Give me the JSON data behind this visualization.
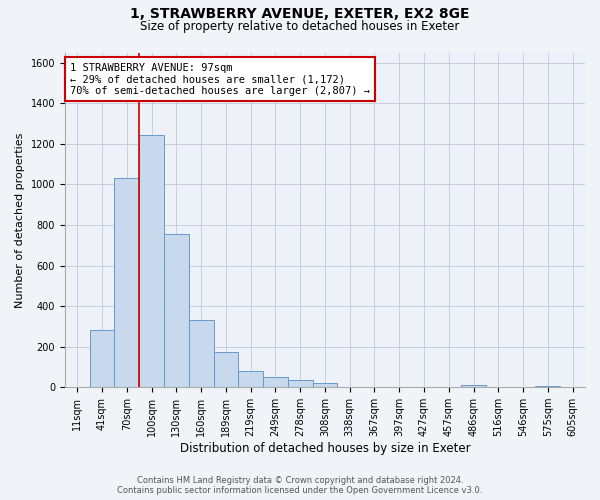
{
  "title_line1": "1, STRAWBERRY AVENUE, EXETER, EX2 8GE",
  "title_line2": "Size of property relative to detached houses in Exeter",
  "xlabel": "Distribution of detached houses by size in Exeter",
  "ylabel": "Number of detached properties",
  "bar_labels": [
    "11sqm",
    "41sqm",
    "70sqm",
    "100sqm",
    "130sqm",
    "160sqm",
    "189sqm",
    "219sqm",
    "249sqm",
    "278sqm",
    "308sqm",
    "338sqm",
    "367sqm",
    "397sqm",
    "427sqm",
    "457sqm",
    "486sqm",
    "516sqm",
    "546sqm",
    "575sqm",
    "605sqm"
  ],
  "bar_heights": [
    0,
    280,
    1030,
    1245,
    755,
    330,
    175,
    82,
    50,
    35,
    20,
    0,
    0,
    0,
    0,
    0,
    10,
    0,
    0,
    5,
    0
  ],
  "bar_color": "#c8d9ee",
  "bar_edge_color": "#6699cc",
  "vline_x": 2.5,
  "vline_color": "#cc0000",
  "annotation_line1": "1 STRAWBERRY AVENUE: 97sqm",
  "annotation_line2": "← 29% of detached houses are smaller (1,172)",
  "annotation_line3": "70% of semi-detached houses are larger (2,807) →",
  "annotation_box_color": "#ffffff",
  "annotation_box_edge": "#cc0000",
  "ylim": [
    0,
    1650
  ],
  "yticks": [
    0,
    200,
    400,
    600,
    800,
    1000,
    1200,
    1400,
    1600
  ],
  "footer_line1": "Contains HM Land Registry data © Crown copyright and database right 2024.",
  "footer_line2": "Contains public sector information licensed under the Open Government Licence v3.0.",
  "bg_color": "#f0f4f8",
  "plot_bg_color": "#eef2f8",
  "grid_color": "#c0c8d8",
  "title1_fontsize": 10,
  "title2_fontsize": 8.5,
  "ylabel_fontsize": 8,
  "xlabel_fontsize": 8.5,
  "tick_fontsize": 7,
  "annotation_fontsize": 7.5,
  "footer_fontsize": 6
}
